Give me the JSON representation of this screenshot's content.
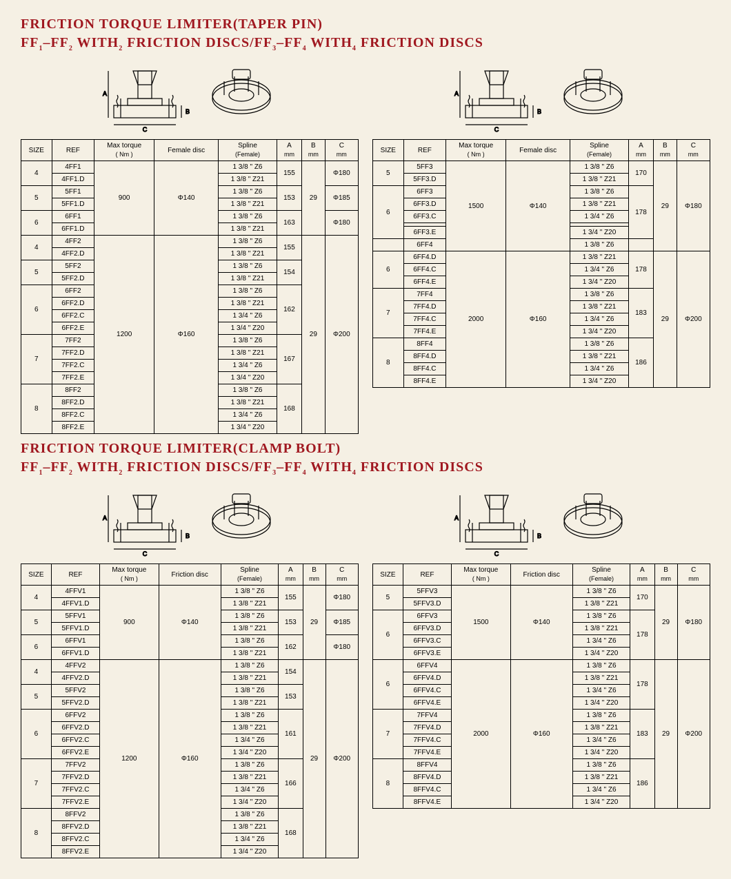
{
  "colors": {
    "heading": "#a01820",
    "background": "#f5f0e4",
    "border": "#000000"
  },
  "section1": {
    "title1": "FRICTION TORQUE LIMITER(TAPER PIN)",
    "title2_parts": [
      "FF",
      "1",
      "–FF",
      "2",
      " WITH",
      "2",
      " FRICTION DISCS/FF",
      "3",
      "–FF",
      "4",
      " WITH",
      "4",
      " FRICTION DISCS"
    ],
    "left": {
      "headers": [
        "SIZE",
        "REF",
        "Max torque ( Nm )",
        "Female disc",
        "Spline (Female)",
        "A mm",
        "B mm",
        "C mm"
      ],
      "groups": [
        {
          "size": "4",
          "refs": [
            "4FF1",
            "4FF1.D"
          ],
          "torque": "900",
          "disc": "Φ140",
          "splines": [
            "1 3/8 \" Z6",
            "1 3/8 \" Z21"
          ],
          "A": "155",
          "B": "29",
          "C": "Φ180",
          "tg": 1,
          "dg": 1,
          "bg": 1
        },
        {
          "size": "5",
          "refs": [
            "5FF1",
            "5FF1.D"
          ],
          "splines": [
            "1 3/8 \" Z6",
            "1 3/8 \" Z21"
          ],
          "A": "153",
          "C": "Φ185"
        },
        {
          "size": "6",
          "refs": [
            "6FF1",
            "6FF1.D"
          ],
          "splines": [
            "1 3/8 \" Z6",
            "1 3/8 \" Z21"
          ],
          "A": "163",
          "C": "Φ180"
        },
        {
          "size": "4",
          "refs": [
            "4FF2",
            "4FF2.D"
          ],
          "torque": "1200",
          "disc": "Φ160",
          "splines": [
            "1 3/8 \" Z6",
            "1 3/8 \" Z21"
          ],
          "A": "155",
          "B": "29",
          "C": "Φ200",
          "tg": 2,
          "dg": 2,
          "bg": 2,
          "cg": 2
        },
        {
          "size": "5",
          "refs": [
            "5FF2",
            "5FF2.D"
          ],
          "splines": [
            "1 3/8 \" Z6",
            "1 3/8 \" Z21"
          ],
          "A": "154"
        },
        {
          "size": "6",
          "refs": [
            "6FF2",
            "6FF2.D",
            "6FF2.C",
            "6FF2.E"
          ],
          "splines": [
            "1 3/8 \" Z6",
            "1 3/8 \" Z21",
            "1 3/4 \" Z6",
            "1 3/4 \" Z20"
          ],
          "A": "162"
        },
        {
          "size": "7",
          "refs": [
            "7FF2",
            "7FF2.D",
            "7FF2.C",
            "7FF2.E"
          ],
          "splines": [
            "1 3/8 \" Z6",
            "1 3/8 \" Z21",
            "1 3/4 \" Z6",
            "1 3/4 \" Z20"
          ],
          "A": "167"
        },
        {
          "size": "8",
          "refs": [
            "8FF2",
            "8FF2.D",
            "8FF2.C",
            "8FF2.E"
          ],
          "splines": [
            "1 3/8 \" Z6",
            "1 3/8 \" Z21",
            "1 3/4 \" Z6",
            "1 3/4 \" Z20"
          ],
          "A": "168"
        }
      ]
    },
    "right": {
      "headers": [
        "SIZE",
        "REF",
        "Max torque ( Nm )",
        "Female disc",
        "Spline (Female)",
        "A mm",
        "B mm",
        "C mm"
      ],
      "groups": [
        {
          "size": "5",
          "refs": [
            "5FF3",
            "5FF3.D"
          ],
          "torque": "1500",
          "disc": "Φ140",
          "splines": [
            "1 3/8 \" Z6",
            "1 3/8 \" Z21"
          ],
          "A": "170",
          "B": "29",
          "C": "Φ180",
          "tg": 1,
          "dg": 1,
          "bg": 1,
          "cg": 1,
          "sizespan": 2
        },
        {
          "size": "6",
          "refs": [
            "6FF3",
            "6FF3.D",
            "6FF3.C",
            "",
            "6FF3.E"
          ],
          "splines": [
            "1 3/8 \" Z6",
            "1 3/8 \" Z21",
            "1 3/4 \" Z6",
            "",
            "1 3/4 \" Z20"
          ],
          "A": "178",
          "blank": 3,
          "sizespan": 5
        },
        {
          "size": "",
          "refs": [
            "6FF4"
          ],
          "splines": [
            "1 3/8 \" Z6"
          ],
          "nosize": 1
        },
        {
          "size": "6",
          "refs": [
            "6FF4.D",
            "6FF4.C",
            "6FF4.E"
          ],
          "torque": "2000",
          "disc": "Φ160",
          "splines": [
            "1 3/8 \" Z21",
            "1 3/4 \" Z6",
            "1 3/4 \" Z20"
          ],
          "A": "178",
          "B": "29",
          "C": "Φ200",
          "tg": 2,
          "dg": 2,
          "bg": 2,
          "cg": 2,
          "sizespan": 3,
          "Aspan": 1
        },
        {
          "size": "7",
          "refs": [
            "7FF4",
            "7FF4.D",
            "7FF4.C",
            "7FF4.E"
          ],
          "splines": [
            "1 3/8 \" Z6",
            "1 3/8 \" Z21",
            "1 3/4 \" Z6",
            "1 3/4 \" Z20"
          ],
          "A": "183"
        },
        {
          "size": "8",
          "refs": [
            "8FF4",
            "8FF4.D",
            "8FF4.C",
            "8FF4.E"
          ],
          "splines": [
            "1 3/8 \" Z6",
            "1 3/8 \" Z21",
            "1 3/4 \" Z6",
            "1 3/4 \" Z20"
          ],
          "A": "186"
        }
      ]
    }
  },
  "section2": {
    "title1": "FRICTION TORQUE LIMITER(CLAMP BOLT)",
    "title2_parts": [
      "FF",
      "1",
      "–FF",
      "2",
      " WITH",
      "2",
      " FRICTION DISCS/FF",
      "3",
      "–FF",
      "4",
      " WITH",
      "4",
      " FRICTION DISCS"
    ],
    "left": {
      "headers": [
        "SIZE",
        "REF",
        "Max torque ( Nm )",
        "Friction disc",
        "Spline (Female)",
        "A mm",
        "B mm",
        "C mm"
      ],
      "groups": [
        {
          "size": "4",
          "refs": [
            "4FFV1",
            "4FFV1.D"
          ],
          "torque": "900",
          "disc": "Φ140",
          "splines": [
            "1 3/8 \" Z6",
            "1 3/8 \" Z21"
          ],
          "A": "155",
          "B": "29",
          "C": "Φ180",
          "tg": 1,
          "dg": 1,
          "bg": 1
        },
        {
          "size": "5",
          "refs": [
            "5FFV1",
            "5FFV1.D"
          ],
          "splines": [
            "1 3/8 \" Z6",
            "1 3/8 \" Z21"
          ],
          "A": "153",
          "C": "Φ185"
        },
        {
          "size": "6",
          "refs": [
            "6FFV1",
            "6FFV1.D"
          ],
          "splines": [
            "1 3/8 \" Z6",
            "1 3/8 \" Z21"
          ],
          "A": "162",
          "C": "Φ180"
        },
        {
          "size": "4",
          "refs": [
            "4FFV2",
            "4FFV2.D"
          ],
          "torque": "1200",
          "disc": "Φ160",
          "splines": [
            "1 3/8 \" Z6",
            "1 3/8 \" Z21"
          ],
          "A": "154",
          "B": "29",
          "C": "Φ200",
          "tg": 2,
          "dg": 2,
          "bg": 2,
          "cg": 2
        },
        {
          "size": "5",
          "refs": [
            "5FFV2",
            "5FFV2.D"
          ],
          "splines": [
            "1 3/8 \" Z6",
            "1 3/8 \" Z21"
          ],
          "A": "153"
        },
        {
          "size": "6",
          "refs": [
            "6FFV2",
            "6FFV2.D",
            "6FFV2.C",
            "6FFV2.E"
          ],
          "splines": [
            "1 3/8 \" Z6",
            "1 3/8 \" Z21",
            "1 3/4 \" Z6",
            "1 3/4 \" Z20"
          ],
          "A": "161"
        },
        {
          "size": "7",
          "refs": [
            "7FFV2",
            "7FFV2.D",
            "7FFV2.C",
            "7FFV2.E"
          ],
          "splines": [
            "1 3/8 \" Z6",
            "1 3/8 \" Z21",
            "1 3/4 \" Z6",
            "1 3/4 \" Z20"
          ],
          "A": "166"
        },
        {
          "size": "8",
          "refs": [
            "8FFV2",
            "8FFV2.D",
            "8FFV2.C",
            "8FFV2.E"
          ],
          "splines": [
            "1 3/8 \" Z6",
            "1 3/8 \" Z21",
            "1 3/4 \" Z6",
            "1 3/4 \" Z20"
          ],
          "A": "168"
        }
      ]
    },
    "right": {
      "headers": [
        "SIZE",
        "REF",
        "Max torque ( Nm )",
        "Friction disc",
        "Spline (Female)",
        "A mm",
        "B mm",
        "C mm"
      ],
      "groups": [
        {
          "size": "5",
          "refs": [
            "5FFV3",
            "5FFV3.D"
          ],
          "torque": "1500",
          "disc": "Φ140",
          "splines": [
            "1 3/8 \" Z6",
            "1 3/8 \" Z21"
          ],
          "A": "170",
          "B": "29",
          "C": "Φ180",
          "tg": 1,
          "dg": 1,
          "bg": 1,
          "cg": 1
        },
        {
          "size": "6",
          "refs": [
            "6FFV3",
            "6FFV3.D",
            "6FFV3.C",
            "6FFV3.E"
          ],
          "splines": [
            "1 3/8 \" Z6",
            "1 3/8 \" Z21",
            "1 3/4 \" Z6",
            "1 3/4 \" Z20"
          ],
          "A": "178"
        },
        {
          "size": "6",
          "refs": [
            "6FFV4",
            "6FFV4.D",
            "6FFV4.C",
            "6FFV4.E"
          ],
          "torque": "2000",
          "disc": "Φ160",
          "splines": [
            "1 3/8 \" Z6",
            "1 3/8 \" Z21",
            "1 3/4 \" Z6",
            "1 3/4 \" Z20"
          ],
          "A": "178",
          "B": "29",
          "C": "Φ200",
          "tg": 2,
          "dg": 2,
          "bg": 2,
          "cg": 2
        },
        {
          "size": "7",
          "refs": [
            "7FFV4",
            "7FFV4.D",
            "7FFV4.C",
            "7FFV4.E"
          ],
          "splines": [
            "1 3/8 \" Z6",
            "1 3/8 \" Z21",
            "1 3/4 \" Z6",
            "1 3/4 \" Z20"
          ],
          "A": "183"
        },
        {
          "size": "8",
          "refs": [
            "8FFV4",
            "8FFV4.D",
            "8FFV4.C",
            "8FFV4.E"
          ],
          "splines": [
            "1 3/8 \" Z6",
            "1 3/8 \" Z21",
            "1 3/4 \" Z6",
            "1 3/4 \" Z20"
          ],
          "A": "186"
        }
      ]
    }
  }
}
